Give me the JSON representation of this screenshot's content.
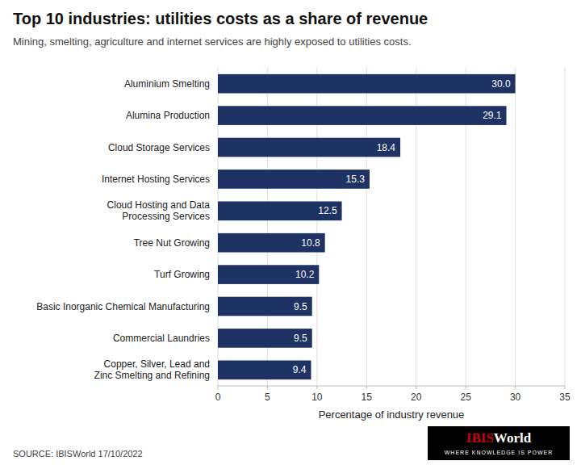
{
  "chart_data": {
    "type": "bar",
    "orientation": "horizontal",
    "title": "Top 10 industries: utilities costs as a share of revenue",
    "subtitle": "Mining, smelting, agriculture and internet services are highly exposed to utilities costs.",
    "categories": [
      "Copper, Silver, Lead and\nZinc Smelting and Refining",
      "Commercial Laundries",
      "Basic Inorganic Chemical Manufacturing",
      "Turf Growing",
      "Tree Nut Growing",
      "Cloud Hosting and Data\nProcessing Services",
      "Internet Hosting Services",
      "Cloud Storage Services",
      "Alumina Production",
      "Aluminium Smelting"
    ],
    "values": [
      9.4,
      9.5,
      9.5,
      10.2,
      10.8,
      12.5,
      15.3,
      18.4,
      29.1,
      30.0
    ],
    "value_labels": [
      "9.4",
      "9.5",
      "9.5",
      "10.2",
      "10.8",
      "12.5",
      "15.3",
      "18.4",
      "29.1",
      "30.0"
    ],
    "data_labels": true,
    "color": "#1e3364",
    "xlabel": "Percentage of industry revenue",
    "xlim": [
      0,
      35
    ],
    "xticks": [
      0,
      5,
      10,
      15,
      20,
      25,
      30,
      35
    ],
    "grid": true,
    "source": "SOURCE: IBISWorld 17/10/2022",
    "annotations": [
      "IBIS",
      "World",
      "WHERE KNOWLEDGE IS POWER"
    ]
  }
}
